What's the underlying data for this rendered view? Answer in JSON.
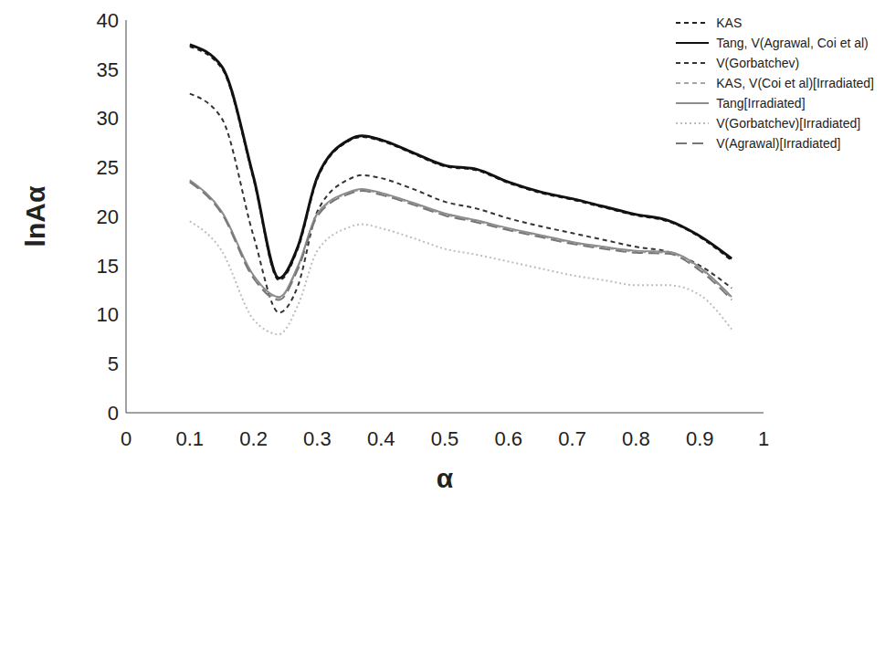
{
  "chart_data": {
    "type": "line",
    "x_label": "α",
    "y_label": "lnAα",
    "x": [
      0.1,
      0.15,
      0.2,
      0.24,
      0.27,
      0.3,
      0.35,
      0.37,
      0.4,
      0.45,
      0.5,
      0.55,
      0.6,
      0.65,
      0.7,
      0.75,
      0.8,
      0.85,
      0.9,
      0.95
    ],
    "xlim": [
      0,
      1
    ],
    "xticks": [
      0,
      0.1,
      0.2,
      0.3,
      0.4,
      0.5,
      0.6,
      0.7,
      0.8,
      0.9,
      1
    ],
    "ylim": [
      0,
      40
    ],
    "yticks": [
      0,
      5,
      10,
      15,
      20,
      25,
      30,
      35,
      40
    ],
    "grid": false,
    "legend": "top-right",
    "series": [
      {
        "name": "KAS",
        "color": "#222222",
        "line_style": "dashed",
        "values": [
          37.3,
          35.1,
          23.8,
          13.5,
          16.8,
          23.8,
          27.7,
          28.1,
          27.7,
          26.4,
          25.1,
          24.7,
          23.4,
          22.4,
          21.7,
          20.9,
          20.1,
          19.5,
          17.9,
          15.5
        ]
      },
      {
        "name": "Tang, V(Agrawal, Coi et al)",
        "color": "#111111",
        "line_style": "solid",
        "values": [
          37.5,
          35.3,
          24,
          13.7,
          17,
          24,
          27.8,
          28.2,
          27.8,
          26.5,
          25.2,
          24.8,
          23.5,
          22.5,
          21.8,
          21,
          20.2,
          19.6,
          18,
          15.7
        ]
      },
      {
        "name": "V(Gorbatchev)",
        "color": "#333333",
        "line_style": "dashed",
        "values": [
          32.5,
          30,
          18,
          10.2,
          13,
          20.5,
          23.8,
          24.2,
          23.9,
          22.8,
          21.5,
          20.8,
          19.8,
          19,
          18.3,
          17.6,
          16.9,
          16.4,
          15,
          12.7
        ]
      },
      {
        "name": "KAS, V(Coi et al)[Irradiated]",
        "color": "#a6a6a6",
        "line_style": "dashed",
        "values": [
          23.6,
          20.4,
          13.9,
          11.7,
          14.9,
          20.2,
          22.4,
          22.7,
          22.3,
          21.3,
          20.2,
          19.5,
          18.7,
          18,
          17.3,
          16.8,
          16.4,
          16.3,
          14.7,
          11.7
        ]
      },
      {
        "name": "Tang[Irradiated]",
        "color": "#8c8c8c",
        "line_style": "solid",
        "values": [
          23.7,
          20.5,
          14,
          11.8,
          15,
          20.3,
          22.5,
          22.8,
          22.4,
          21.4,
          20.3,
          19.6,
          18.8,
          18.1,
          17.4,
          16.9,
          16.5,
          16.4,
          14.8,
          11.8
        ]
      },
      {
        "name": "V(Gorbatchev)[Irradiated]",
        "color": "#bdbdbd",
        "line_style": "dotted",
        "values": [
          19.5,
          16.5,
          9.5,
          8,
          11,
          16.5,
          18.9,
          19.2,
          18.8,
          17.8,
          16.7,
          16.1,
          15.4,
          14.7,
          14,
          13.5,
          13,
          13,
          12,
          8.5
        ]
      },
      {
        "name": "V(Agrawal)[Irradiated]",
        "color": "#777777",
        "line_style": "longdash",
        "values": [
          23.5,
          20.3,
          13.7,
          11.5,
          14.7,
          20,
          22.3,
          22.6,
          22.2,
          21.2,
          20.1,
          19.4,
          18.6,
          17.9,
          17.2,
          16.7,
          16.3,
          16.2,
          14.5,
          11.5
        ]
      }
    ]
  }
}
